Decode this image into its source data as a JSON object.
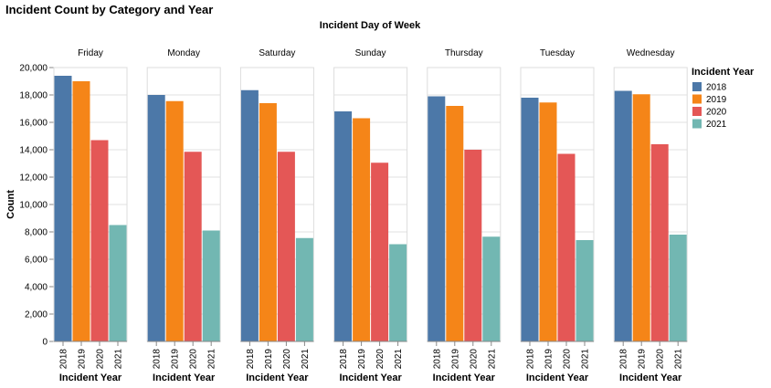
{
  "chart_data": {
    "type": "bar",
    "title": "Incident Count by Category and Year",
    "column_title": "Incident Day of Week",
    "ylabel": "Count",
    "xlabel": "Incident Year",
    "ylim": [
      0,
      20000
    ],
    "y_ticks": [
      "0",
      "2,000",
      "4,000",
      "6,000",
      "8,000",
      "10,000",
      "12,000",
      "14,000",
      "16,000",
      "18,000",
      "20,000"
    ],
    "y_tick_values": [
      0,
      2000,
      4000,
      6000,
      8000,
      10000,
      12000,
      14000,
      16000,
      18000,
      20000
    ],
    "grid": true,
    "legend_position": "right",
    "legend_title": "Incident Year",
    "categories": [
      "2018",
      "2019",
      "2020",
      "2021"
    ],
    "colors": [
      "#4c78a8",
      "#f58518",
      "#e45756",
      "#72b7b2"
    ],
    "facets": [
      {
        "name": "Friday",
        "values": [
          19400,
          19000,
          14700,
          8500
        ]
      },
      {
        "name": "Monday",
        "values": [
          18000,
          17550,
          13850,
          8100
        ]
      },
      {
        "name": "Saturday",
        "values": [
          18350,
          17400,
          13850,
          7550
        ]
      },
      {
        "name": "Sunday",
        "values": [
          16800,
          16300,
          13050,
          7100
        ]
      },
      {
        "name": "Thursday",
        "values": [
          17900,
          17200,
          14000,
          7650
        ]
      },
      {
        "name": "Tuesday",
        "values": [
          17800,
          17450,
          13700,
          7400
        ]
      },
      {
        "name": "Wednesday",
        "values": [
          18300,
          18050,
          14400,
          7800
        ]
      }
    ]
  }
}
